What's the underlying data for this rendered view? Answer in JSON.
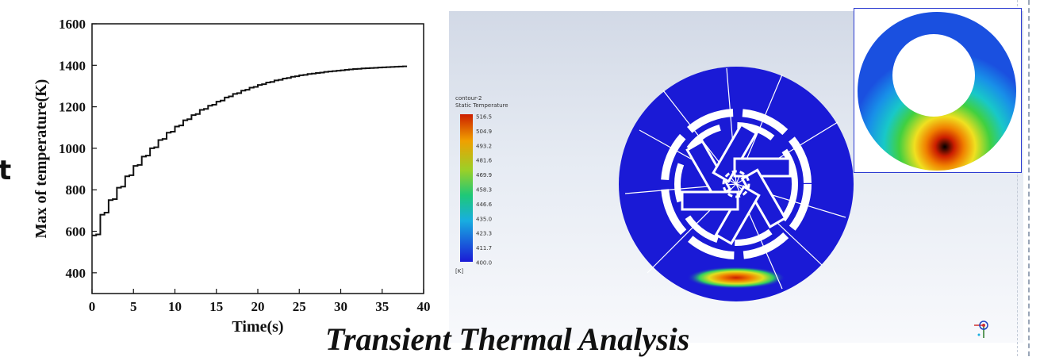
{
  "slide": {
    "fragment_letter": "t",
    "caption": "Transient Thermal Analysis"
  },
  "chart_data": {
    "type": "line",
    "title": "",
    "xlabel": "Time(s)",
    "ylabel": "Max of temperature(K)",
    "xlim": [
      0,
      40
    ],
    "ylim": [
      300,
      1600
    ],
    "xticks": [
      0,
      5,
      10,
      15,
      20,
      25,
      30,
      35,
      40
    ],
    "yticks": [
      400,
      600,
      800,
      1000,
      1200,
      1400,
      1600
    ],
    "grid": false,
    "legend": "none",
    "series": [
      {
        "style": "stepped",
        "x": [
          0,
          0.5,
          1,
          1.5,
          2,
          2.5,
          3,
          3.5,
          4,
          4.5,
          5,
          5.5,
          6,
          6.5,
          7,
          7.5,
          8,
          8.5,
          9,
          9.5,
          10,
          10.5,
          11,
          11.5,
          12,
          12.5,
          13,
          13.5,
          14,
          14.5,
          15,
          15.5,
          16,
          16.5,
          17,
          17.5,
          18,
          18.5,
          19,
          19.5,
          20,
          20.5,
          21,
          21.5,
          22,
          22.5,
          23,
          23.5,
          24,
          24.5,
          25,
          25.5,
          26,
          26.5,
          27,
          27.5,
          28,
          28.5,
          29,
          29.5,
          30,
          30.5,
          31,
          31.5,
          32,
          32.5,
          33,
          33.5,
          34,
          34.5,
          35,
          35.5,
          36,
          36.5,
          37,
          37.5
        ],
        "y": [
          580,
          585,
          680,
          690,
          750,
          755,
          810,
          815,
          865,
          870,
          915,
          920,
          960,
          965,
          1000,
          1005,
          1040,
          1045,
          1075,
          1080,
          1105,
          1110,
          1135,
          1140,
          1160,
          1165,
          1185,
          1190,
          1205,
          1210,
          1225,
          1230,
          1245,
          1250,
          1262,
          1266,
          1278,
          1282,
          1292,
          1296,
          1305,
          1309,
          1317,
          1320,
          1327,
          1330,
          1336,
          1339,
          1345,
          1347,
          1352,
          1354,
          1358,
          1360,
          1363,
          1365,
          1368,
          1370,
          1372,
          1374,
          1376,
          1378,
          1380,
          1382,
          1383,
          1385,
          1386,
          1387,
          1388,
          1389,
          1390,
          1391,
          1392,
          1393,
          1394,
          1395
        ]
      }
    ]
  },
  "simulation": {
    "legend_title_1": "contour-2",
    "legend_title_2": "Static Temperature",
    "unit": "[K]",
    "levels": [
      "516.5",
      "504.9",
      "493.2",
      "481.6",
      "469.9",
      "458.3",
      "446.6",
      "435.0",
      "423.3",
      "411.7",
      "400.0"
    ],
    "colors": {
      "disc": "#1a1ad6",
      "hot": "#cc1e00",
      "inset_border": "#2b3ad0",
      "background_top": "#d2d9e6"
    }
  }
}
